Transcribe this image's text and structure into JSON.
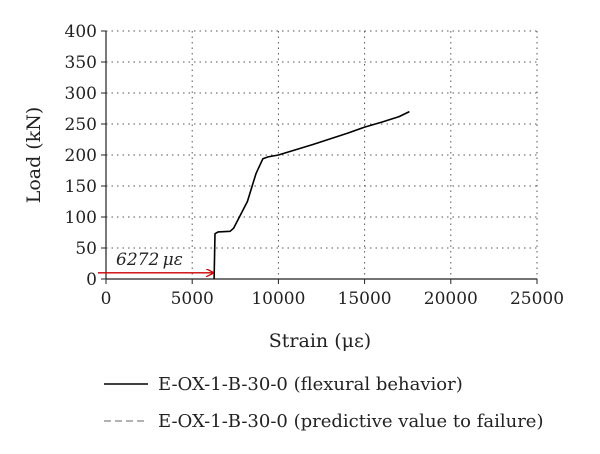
{
  "chart_data": {
    "type": "line",
    "xlabel": "Strain (με)",
    "ylabel": "Load (kN)",
    "xlim": [
      0,
      25000
    ],
    "ylim": [
      0,
      400
    ],
    "xticks": [
      0,
      5000,
      10000,
      15000,
      20000,
      25000
    ],
    "yticks": [
      0,
      50,
      100,
      150,
      200,
      250,
      300,
      350,
      400
    ],
    "grid": "dotted",
    "legend_position": "bottom",
    "series": [
      {
        "name": "E-OX-1-B-30-0 (flexural behavior)",
        "color": "#000000",
        "style": "solid",
        "x": [
          6272,
          6320,
          6500,
          7200,
          7400,
          8200,
          8700,
          9100,
          9400,
          10000,
          12000,
          14000,
          15000,
          16000,
          17000,
          17600
        ],
        "y": [
          0,
          73,
          76,
          77,
          82,
          125,
          170,
          194,
          197,
          200,
          217,
          235,
          245,
          253,
          262,
          270
        ]
      },
      {
        "name": "E-OX-1-B-30-0 (predictive value to failure)",
        "color": "#999999",
        "style": "dashed",
        "x": [],
        "y": []
      }
    ],
    "annotations": [
      {
        "text": "6272 με",
        "x": 6272,
        "y": 10,
        "arrow_color": "#cc0000"
      }
    ]
  }
}
